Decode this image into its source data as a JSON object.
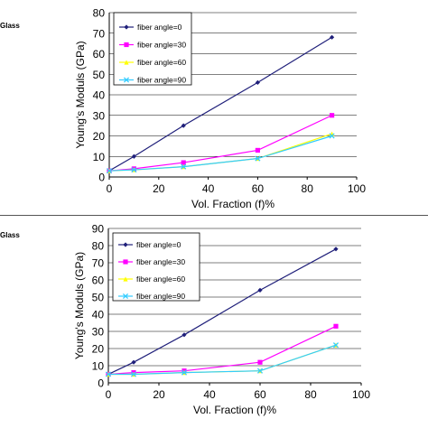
{
  "panels": [
    {
      "label": "Glass"
    },
    {
      "label": "Glass"
    }
  ],
  "chart_data": [
    {
      "type": "line",
      "title": "",
      "xlabel": "Vol. Fraction (f)%",
      "ylabel": "Young's Moduls (GPa)",
      "xlim": [
        0,
        100
      ],
      "ylim": [
        0,
        80
      ],
      "xticks": [
        0,
        20,
        40,
        60,
        80,
        100
      ],
      "yticks": [
        0,
        10,
        20,
        30,
        40,
        50,
        60,
        70,
        80
      ],
      "grid": "horizontal",
      "legend": "top-left",
      "x": [
        0,
        10,
        30,
        60,
        90
      ],
      "series": [
        {
          "name": "fiber angle=0",
          "values": [
            3,
            10,
            25,
            46,
            68
          ],
          "color": "#1f1f7a",
          "marker": "diamond"
        },
        {
          "name": "fiber angle=30",
          "values": [
            3,
            4,
            7,
            13,
            30
          ],
          "color": "#ff00ff",
          "marker": "square"
        },
        {
          "name": "fiber angle=60",
          "values": [
            3,
            3.5,
            5,
            9,
            21
          ],
          "color": "#ffff00",
          "marker": "triangle"
        },
        {
          "name": "fiber angle=90",
          "values": [
            3,
            3.5,
            5,
            9,
            20
          ],
          "color": "#33ccff",
          "marker": "x"
        }
      ]
    },
    {
      "type": "line",
      "title": "",
      "xlabel": "Vol. Fraction (f)%",
      "ylabel": "Young's Moduls (GPa)",
      "xlim": [
        0,
        100
      ],
      "ylim": [
        0,
        90
      ],
      "xticks": [
        0,
        20,
        40,
        60,
        80,
        100
      ],
      "yticks": [
        0,
        10,
        20,
        30,
        40,
        50,
        60,
        70,
        80,
        90
      ],
      "grid": "horizontal",
      "legend": "top-left",
      "x": [
        0,
        10,
        30,
        60,
        90
      ],
      "series": [
        {
          "name": "fiber angle=0",
          "values": [
            5,
            12,
            28,
            54,
            78
          ],
          "color": "#1f1f7a",
          "marker": "diamond"
        },
        {
          "name": "fiber angle=30",
          "values": [
            5,
            6,
            7,
            12,
            33
          ],
          "color": "#ff00ff",
          "marker": "square"
        },
        {
          "name": "fiber angle=60",
          "values": [
            5,
            5,
            6,
            7,
            22
          ],
          "color": "#ffff00",
          "marker": "triangle"
        },
        {
          "name": "fiber angle=90",
          "values": [
            5,
            5,
            6,
            7,
            22
          ],
          "color": "#33ccff",
          "marker": "x"
        }
      ]
    }
  ]
}
